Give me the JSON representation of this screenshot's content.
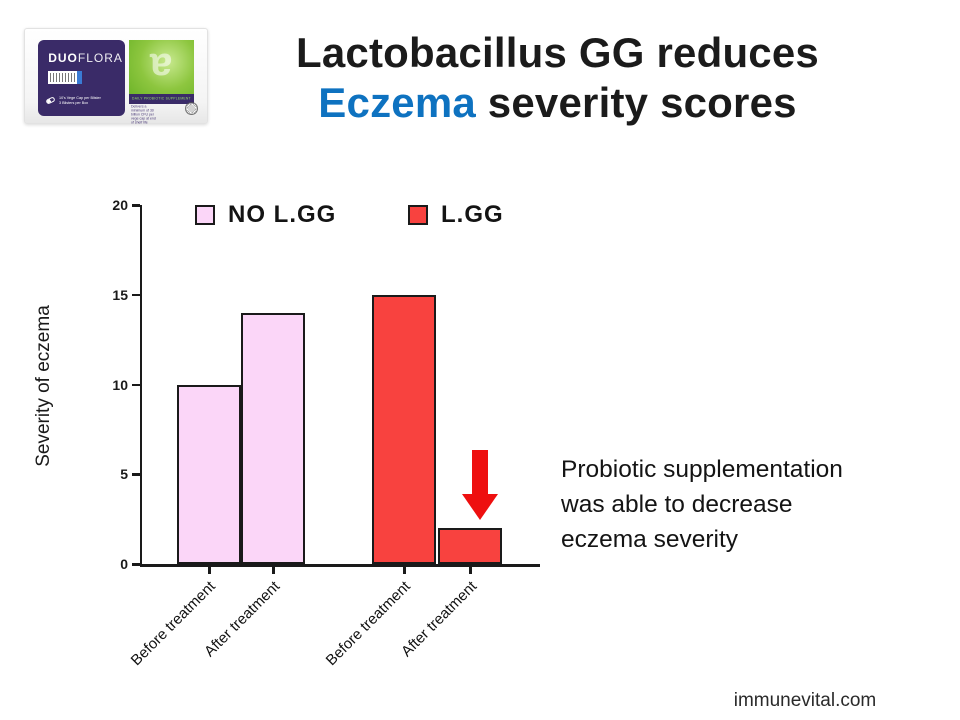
{
  "title": {
    "line1": "Lactobacillus GG reduces",
    "line2_highlight": "Eczema",
    "line2_rest": " severity scores"
  },
  "product": {
    "brand_bold": "DUO",
    "brand_rest": "FLORA",
    "pack_line1": "10's Vege Cap per Blister",
    "pack_line2": "3 Blisters per Box",
    "banner": "DAILY PROBIOTIC SUPPLEMENT",
    "fine_print": "Delivers a minimum of 30 billion CFU per vege cap at end of shelf life",
    "logo_letter": "a"
  },
  "annotation": {
    "line1": "Probiotic supplementation",
    "line2": "was able to decrease",
    "line3": "eczema severity"
  },
  "footer": "immunevital.com",
  "colors": {
    "accent_blue": "#0e72c0",
    "bar_pink": "#fbd6f8",
    "bar_red": "#f8423f",
    "arrow_red": "#ee0f0f",
    "box_purple": "#3a2b68",
    "box_green": "#8dc63f"
  },
  "chart_data": {
    "type": "bar",
    "title": "",
    "xlabel": "",
    "ylabel": "Severity of eczema",
    "ylim": [
      0,
      20
    ],
    "yticks": [
      0,
      5,
      10,
      15,
      20
    ],
    "grid": false,
    "legend_position": "top",
    "categories": [
      "Before treatment",
      "After treatment",
      "Before treatment",
      "After treatment"
    ],
    "series": [
      {
        "name": "NO L.GG",
        "color": "#fbd6f8",
        "values": [
          10,
          14
        ]
      },
      {
        "name": "L.GG",
        "color": "#f8423f",
        "values": [
          15,
          2
        ]
      }
    ]
  }
}
